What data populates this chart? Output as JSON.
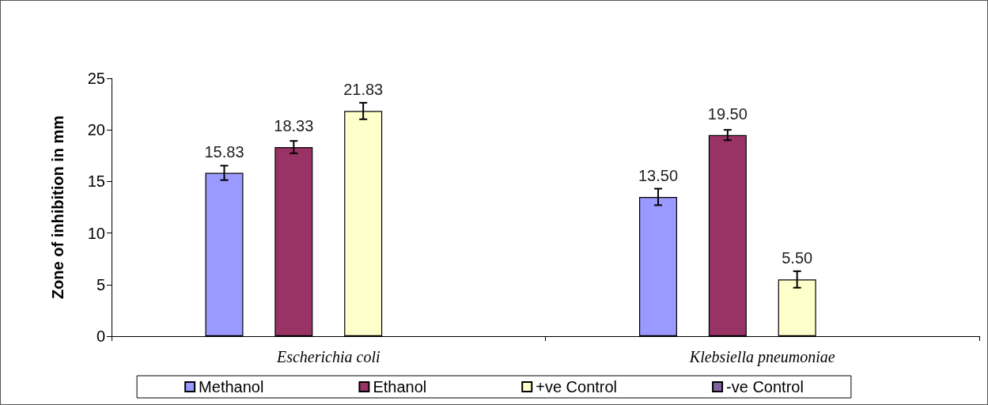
{
  "chart_data": {
    "type": "bar",
    "ylabel": "Zone of inhibition in mm",
    "categories": [
      "Escherichia coli",
      "Klebsiella pneumoniae"
    ],
    "series": [
      {
        "name": "Methanol",
        "color": "#9999ff",
        "values": [
          15.83,
          13.5
        ],
        "errors": [
          0.7,
          0.8
        ],
        "value_labels": [
          "15.83",
          "13.50"
        ]
      },
      {
        "name": "Ethanol",
        "color": "#993366",
        "values": [
          18.33,
          19.5
        ],
        "errors": [
          0.6,
          0.5
        ],
        "value_labels": [
          "18.33",
          "19.50"
        ]
      },
      {
        "name": "+ve Control",
        "color": "#ffffcc",
        "values": [
          21.83,
          5.5
        ],
        "errors": [
          0.8,
          0.8
        ],
        "value_labels": [
          "21.83",
          "5.50"
        ]
      },
      {
        "name": "-ve Control",
        "color": "#8064a2",
        "values": [
          0,
          0
        ],
        "value_labels": [
          null,
          null
        ]
      }
    ],
    "ylim": [
      0,
      25
    ],
    "yticks": [
      0,
      5,
      10,
      15,
      20,
      25
    ],
    "grid": false,
    "legend": "bottom"
  }
}
